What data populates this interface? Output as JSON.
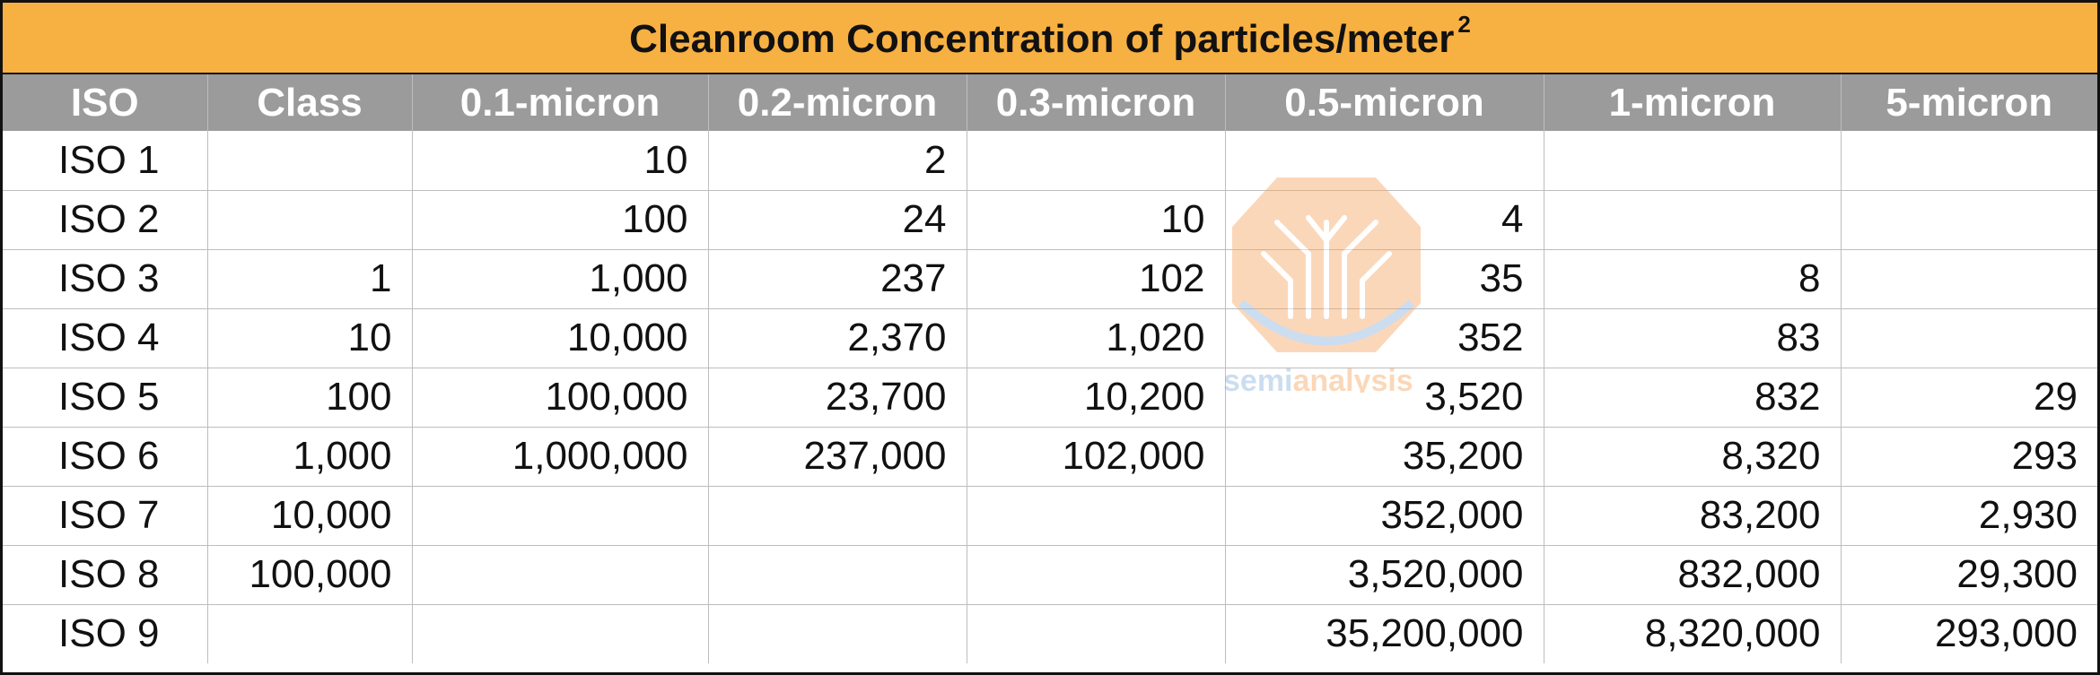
{
  "colors": {
    "title_bg": "#F7B042",
    "header_bg": "#9B9B9B",
    "watermark_orange": "#F7A865",
    "watermark_blue": "#8FB4DE"
  },
  "watermark": {
    "text_part1": "semi",
    "text_part2": "analysis"
  },
  "chart_data": {
    "type": "table",
    "title": "Cleanroom Concentration of particles/meter",
    "title_superscript": "2",
    "columns": [
      "ISO",
      "Class",
      "0.1-micron",
      "0.2-micron",
      "0.3-micron",
      "0.5-micron",
      "1-micron",
      "5-micron"
    ],
    "rows": [
      [
        "ISO 1",
        "",
        "10",
        "2",
        "",
        "",
        "",
        ""
      ],
      [
        "ISO 2",
        "",
        "100",
        "24",
        "10",
        "4",
        "",
        ""
      ],
      [
        "ISO 3",
        "1",
        "1,000",
        "237",
        "102",
        "35",
        "8",
        ""
      ],
      [
        "ISO 4",
        "10",
        "10,000",
        "2,370",
        "1,020",
        "352",
        "83",
        ""
      ],
      [
        "ISO 5",
        "100",
        "100,000",
        "23,700",
        "10,200",
        "3,520",
        "832",
        "29"
      ],
      [
        "ISO 6",
        "1,000",
        "1,000,000",
        "237,000",
        "102,000",
        "35,200",
        "8,320",
        "293"
      ],
      [
        "ISO 7",
        "10,000",
        "",
        "",
        "",
        "352,000",
        "83,200",
        "2,930"
      ],
      [
        "ISO 8",
        "100,000",
        "",
        "",
        "",
        "3,520,000",
        "832,000",
        "29,300"
      ],
      [
        "ISO 9",
        "",
        "",
        "",
        "",
        "35,200,000",
        "8,320,000",
        "293,000"
      ]
    ]
  }
}
